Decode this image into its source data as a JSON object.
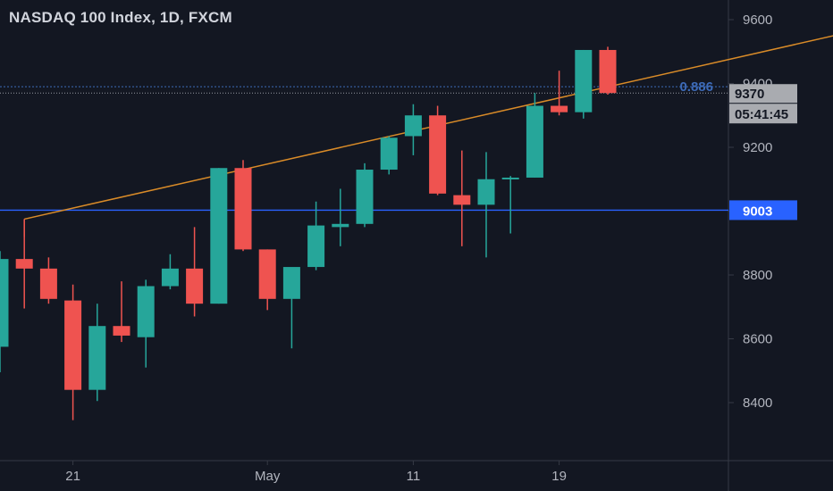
{
  "chart_data": {
    "type": "candlestick",
    "title": "NASDAQ 100 Index, 1D, FXCM",
    "y_ticks": [
      "9600",
      "9400",
      "9200",
      "9000",
      "8800",
      "8600",
      "8400"
    ],
    "y_tick_values": [
      9600,
      9400,
      9200,
      9000,
      8800,
      8600,
      8400
    ],
    "x_ticks": [
      {
        "label": "21",
        "index": 3
      },
      {
        "label": "May",
        "index": 11
      },
      {
        "label": "11",
        "index": 17
      },
      {
        "label": "19",
        "index": 23
      }
    ],
    "ylim": [
      8250,
      9660
    ],
    "candles": [
      {
        "open": 8575,
        "high": 8875,
        "low": 8495,
        "close": 8850
      },
      {
        "open": 8850,
        "high": 8975,
        "low": 8695,
        "close": 8820
      },
      {
        "open": 8820,
        "high": 8855,
        "low": 8710,
        "close": 8725
      },
      {
        "open": 8720,
        "high": 8770,
        "low": 8345,
        "close": 8440
      },
      {
        "open": 8440,
        "high": 8710,
        "low": 8405,
        "close": 8640
      },
      {
        "open": 8640,
        "high": 8780,
        "low": 8590,
        "close": 8610
      },
      {
        "open": 8605,
        "high": 8785,
        "low": 8510,
        "close": 8765
      },
      {
        "open": 8765,
        "high": 8865,
        "low": 8755,
        "close": 8820
      },
      {
        "open": 8820,
        "high": 8950,
        "low": 8670,
        "close": 8710
      },
      {
        "open": 8710,
        "high": 9135,
        "low": 8710,
        "close": 9135
      },
      {
        "open": 9135,
        "high": 9160,
        "low": 8875,
        "close": 8880
      },
      {
        "open": 8880,
        "high": 8880,
        "low": 8690,
        "close": 8725
      },
      {
        "open": 8725,
        "high": 8820,
        "low": 8570,
        "close": 8825
      },
      {
        "open": 8825,
        "high": 9030,
        "low": 8815,
        "close": 8955
      },
      {
        "open": 8950,
        "high": 9070,
        "low": 8890,
        "close": 8960
      },
      {
        "open": 8960,
        "high": 9150,
        "low": 8950,
        "close": 9130
      },
      {
        "open": 9130,
        "high": 9235,
        "low": 9115,
        "close": 9230
      },
      {
        "open": 9235,
        "high": 9335,
        "low": 9175,
        "close": 9300
      },
      {
        "open": 9300,
        "high": 9330,
        "low": 9050,
        "close": 9055
      },
      {
        "open": 9050,
        "high": 9190,
        "low": 8890,
        "close": 9020
      },
      {
        "open": 9020,
        "high": 9185,
        "low": 8855,
        "close": 9100
      },
      {
        "open": 9100,
        "high": 9110,
        "low": 8930,
        "close": 9105
      },
      {
        "open": 9105,
        "high": 9370,
        "low": 9105,
        "close": 9330
      },
      {
        "open": 9330,
        "high": 9440,
        "low": 9300,
        "close": 9310
      },
      {
        "open": 9310,
        "high": 9505,
        "low": 9290,
        "close": 9505
      },
      {
        "open": 9505,
        "high": 9515,
        "low": 9365,
        "close": 9370
      }
    ],
    "trendline": {
      "x1": 1,
      "y1": 8975,
      "x2": 34.6,
      "y2": 9555
    },
    "horizontal_line": {
      "value": 9003,
      "label": "9003"
    },
    "fib_line": {
      "value": 9390,
      "label": "0.886"
    },
    "price_line": {
      "value": 9370,
      "label": "9370"
    },
    "countdown": "05:41:45",
    "colors": {
      "background": "#131722",
      "up": "#26a69a",
      "down": "#ef5350",
      "axis_text": "#b2b5be",
      "trendline": "#d98b28",
      "hline": "#2962ff",
      "fib": "#3d6bb8",
      "price_label_bg": "#a9abb0"
    }
  }
}
